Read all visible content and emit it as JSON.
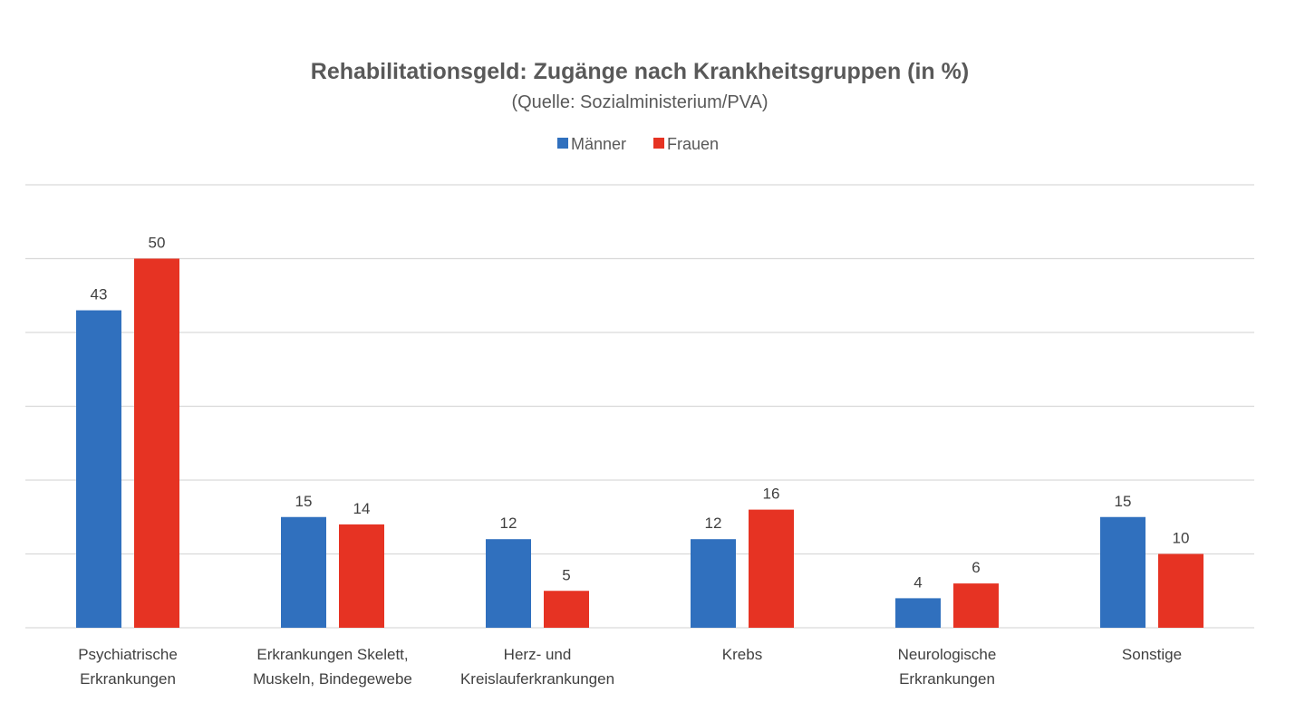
{
  "chart_data": {
    "type": "bar",
    "title": "Rehabilitationsgeld: Zugänge nach Krankheitsgruppen (in %)",
    "subtitle": "(Quelle: Sozialministerium/PVA)",
    "xlabel": "",
    "ylabel": "",
    "ylim": [
      0,
      60
    ],
    "y_gridlines": [
      0,
      10,
      20,
      30,
      40,
      50,
      60
    ],
    "grid": true,
    "legend_position": "top-center",
    "categories": [
      [
        "Psychiatrische",
        "Erkrankungen"
      ],
      [
        "Erkrankungen Skelett,",
        "Muskeln, Bindegewebe"
      ],
      [
        "Herz- und",
        "Kreislauferkrankungen"
      ],
      [
        "Krebs"
      ],
      [
        "Neurologische",
        "Erkrankungen"
      ],
      [
        "Sonstige"
      ]
    ],
    "series": [
      {
        "name": "Männer",
        "color": "#3070BE",
        "values": [
          43,
          15,
          12,
          12,
          4,
          15
        ]
      },
      {
        "name": "Frauen",
        "color": "#E63323",
        "values": [
          50,
          14,
          5,
          16,
          6,
          10
        ]
      }
    ]
  }
}
